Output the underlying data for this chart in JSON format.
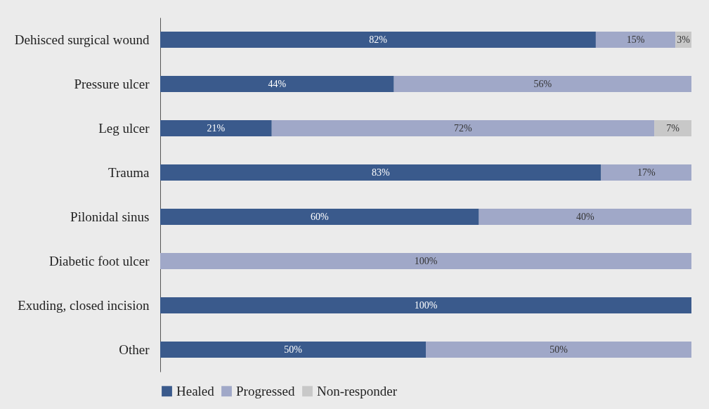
{
  "chart_data": {
    "type": "bar",
    "orientation": "horizontal",
    "stacked": true,
    "categories": [
      "Dehisced surgical wound",
      "Pressure ulcer",
      "Leg ulcer",
      "Trauma",
      "Pilonidal sinus",
      "Diabetic foot ulcer",
      "Exuding, closed incision",
      "Other"
    ],
    "series": [
      {
        "name": "Healed",
        "color": "#3a5a8c",
        "values": [
          82,
          44,
          21,
          83,
          60,
          null,
          100,
          50
        ],
        "value_labels": [
          "82%",
          "44%",
          "21%",
          "83%",
          "60%",
          null,
          "100%",
          "50%"
        ]
      },
      {
        "name": "Progressed",
        "color": "#a0a8c8",
        "values": [
          15,
          56,
          72,
          17,
          40,
          100,
          null,
          50
        ],
        "value_labels": [
          "15%",
          "56%",
          "72%",
          "17%",
          "40%",
          "100%",
          null,
          "50%"
        ]
      },
      {
        "name": "Non-responder",
        "color": "#c8c8c8",
        "values": [
          3,
          null,
          7,
          null,
          null,
          null,
          null,
          null
        ],
        "value_labels": [
          "3%",
          null,
          "7%",
          null,
          null,
          null,
          null,
          null
        ]
      }
    ],
    "xlim": [
      0,
      100
    ],
    "tick_labels": "y",
    "grid": false,
    "legend": "bottom"
  }
}
